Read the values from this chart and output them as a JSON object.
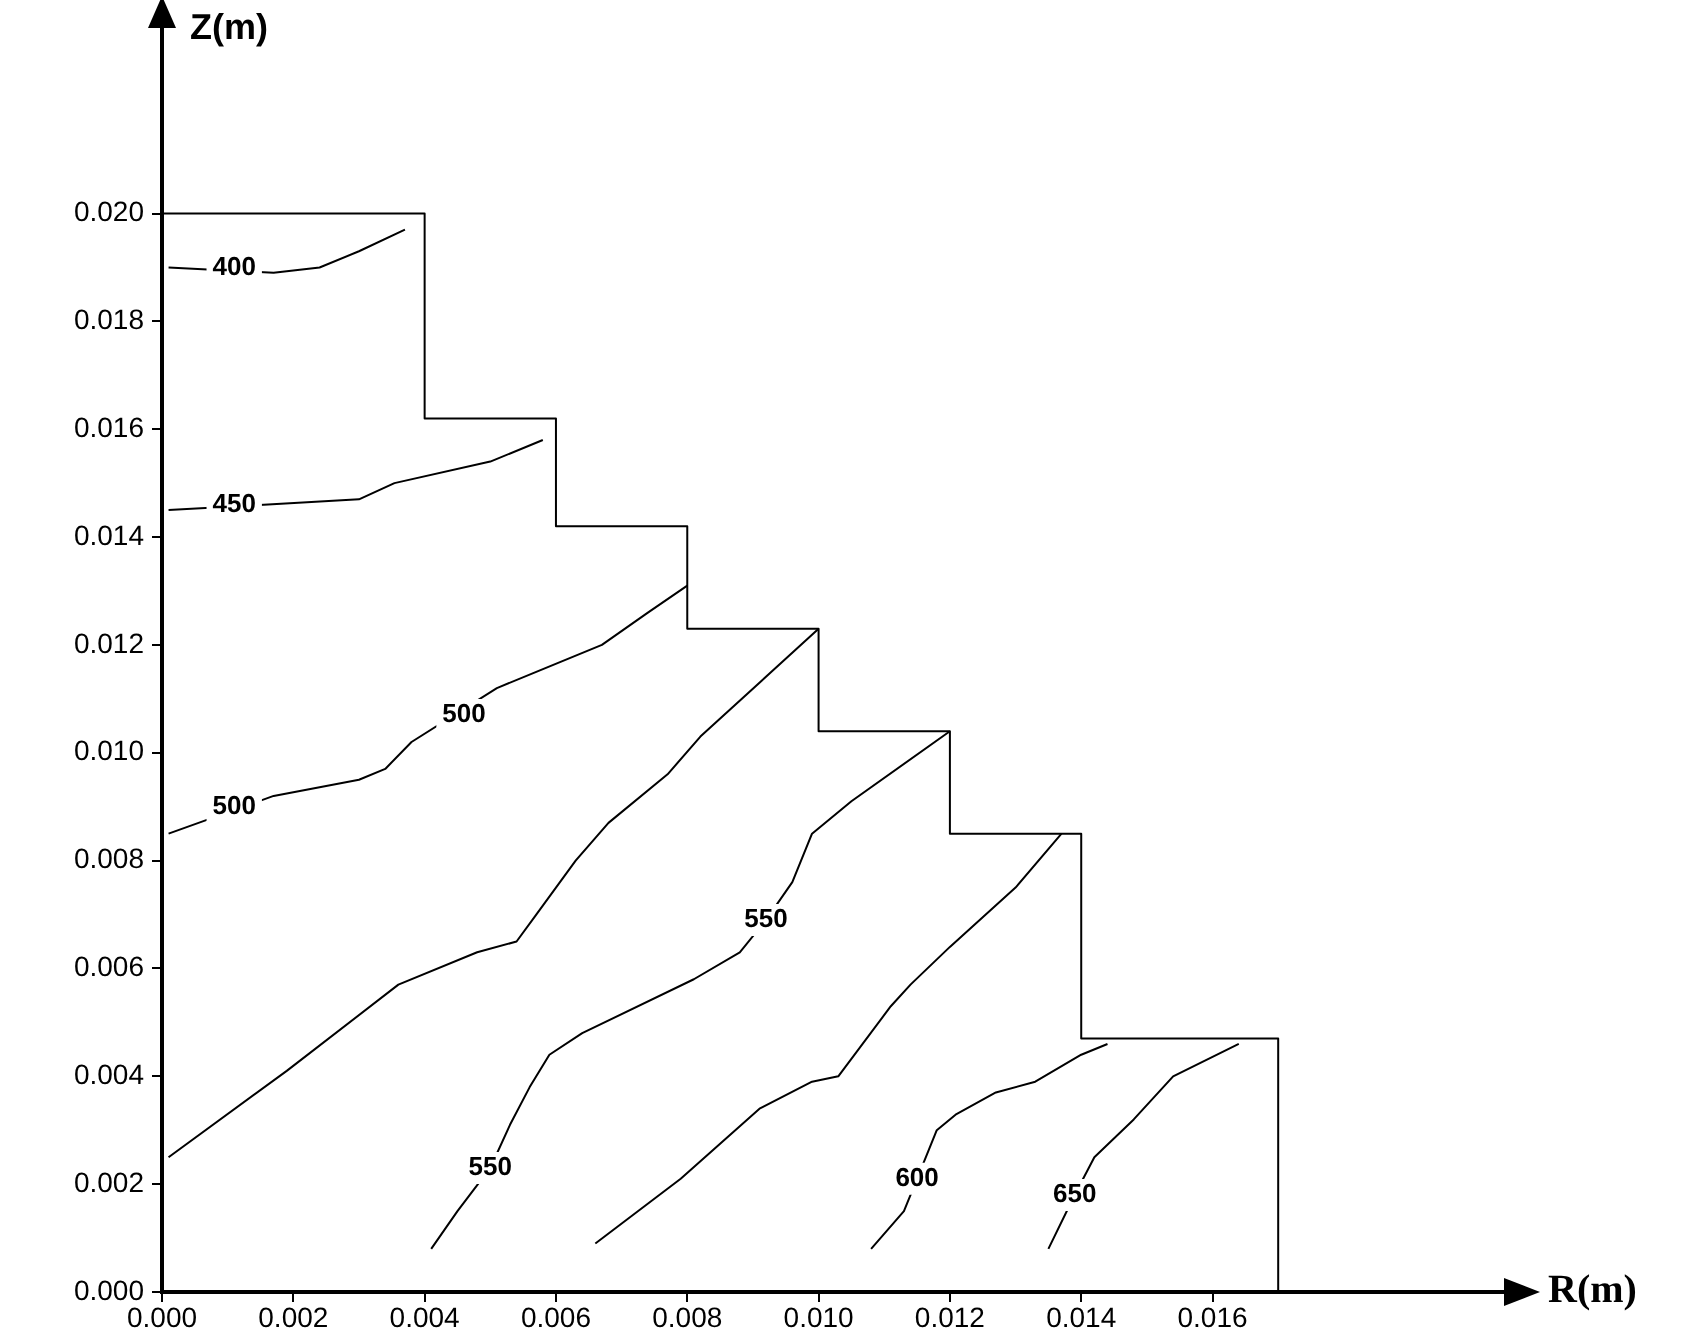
{
  "chart_data": {
    "type": "line",
    "xlabel": "R(m)",
    "ylabel": "Z(m)",
    "marker": "none",
    "line_style": "solid",
    "grid": false,
    "xlim": [
      0,
      0.0205
    ],
    "ylim": [
      0,
      0.0235
    ],
    "xticks": [
      {
        "value": 0,
        "label": "0.000"
      },
      {
        "value": 0.002,
        "label": "0.002"
      },
      {
        "value": 0.004,
        "label": "0.004"
      },
      {
        "value": 0.006,
        "label": "0.006"
      },
      {
        "value": 0.008,
        "label": "0.008"
      },
      {
        "value": 0.01,
        "label": "0.010"
      },
      {
        "value": 0.012,
        "label": "0.012"
      },
      {
        "value": 0.014,
        "label": "0.014"
      },
      {
        "value": 0.016,
        "label": "0.016"
      }
    ],
    "yticks": [
      {
        "value": 0,
        "label": "0.000"
      },
      {
        "value": 0.002,
        "label": "0.002"
      },
      {
        "value": 0.004,
        "label": "0.004"
      },
      {
        "value": 0.006,
        "label": "0.006"
      },
      {
        "value": 0.008,
        "label": "0.008"
      },
      {
        "value": 0.01,
        "label": "0.010"
      },
      {
        "value": 0.012,
        "label": "0.012"
      },
      {
        "value": 0.014,
        "label": "0.014"
      },
      {
        "value": 0.016,
        "label": "0.016"
      },
      {
        "value": 0.018,
        "label": "0.018"
      },
      {
        "value": 0.02,
        "label": "0.020"
      }
    ],
    "series": [
      {
        "color": "#000000",
        "x": [
          0,
          0.004,
          0.004,
          0.006,
          0.006,
          0.008,
          0.008,
          0.01,
          0.01,
          0.012,
          0.012,
          0.014,
          0.014,
          0.017,
          0.017
        ],
        "values": [
          0.02,
          0.02,
          0.0162,
          0.0162,
          0.0142,
          0.0142,
          0.0123,
          0.0123,
          0.0104,
          0.0104,
          0.0085,
          0.0085,
          0.0047,
          0.0047,
          0
        ]
      },
      {
        "color": "#000000",
        "x": [
          0.0001,
          0.0017,
          0.0024,
          0.003,
          0.0037
        ],
        "values": [
          0.019,
          0.0189,
          0.019,
          0.0193,
          0.0197
        ]
      },
      {
        "color": "#000000",
        "x": [
          0.0001,
          0.00155,
          0.003,
          0.00354,
          0.005,
          0.0058
        ],
        "values": [
          0.0145,
          0.0146,
          0.0147,
          0.015,
          0.0154,
          0.0158
        ]
      },
      {
        "color": "#000000",
        "x": [
          0.0001,
          0.0017,
          0.003,
          0.0034,
          0.0038,
          0.0051,
          0.0057,
          0.0067,
          0.0074,
          0.008
        ],
        "values": [
          0.0085,
          0.0092,
          0.0095,
          0.0097,
          0.0102,
          0.0112,
          0.0115,
          0.012,
          0.0126,
          0.0131
        ]
      },
      {
        "color": "#000000",
        "x": [
          0.0001,
          0.0019,
          0.0036,
          0.0048,
          0.0054,
          0.0057,
          0.0063,
          0.0068,
          0.0077,
          0.0082,
          0.01
        ],
        "values": [
          0.0025,
          0.0041,
          0.0057,
          0.0063,
          0.0065,
          0.007,
          0.008,
          0.0087,
          0.0096,
          0.0103,
          0.0123
        ]
      },
      {
        "color": "#000000",
        "x": [
          0.0041,
          0.0045,
          0.005,
          0.0053,
          0.0056,
          0.0059,
          0.0064,
          0.0081,
          0.0088,
          0.0092,
          0.0096,
          0.0099,
          0.0105,
          0.012
        ],
        "values": [
          0.0008,
          0.0015,
          0.0023,
          0.0031,
          0.0038,
          0.0044,
          0.0048,
          0.0058,
          0.0063,
          0.0069,
          0.0076,
          0.0085,
          0.0091,
          0.0104
        ]
      },
      {
        "color": "#000000",
        "x": [
          0.0066,
          0.0079,
          0.0091,
          0.0099,
          0.0103,
          0.0111,
          0.0114,
          0.012,
          0.013,
          0.0137
        ],
        "values": [
          0.0009,
          0.0021,
          0.0034,
          0.0039,
          0.004,
          0.0053,
          0.0057,
          0.0064,
          0.0075,
          0.0085
        ]
      },
      {
        "color": "#000000",
        "x": [
          0.0108,
          0.0113,
          0.0115,
          0.0118,
          0.0121,
          0.0127,
          0.0133,
          0.014,
          0.0144
        ],
        "values": [
          0.0008,
          0.0015,
          0.0021,
          0.003,
          0.0033,
          0.0037,
          0.0039,
          0.0044,
          0.0046
        ]
      },
      {
        "color": "#000000",
        "x": [
          0.0135,
          0.0139,
          0.0142,
          0.0148,
          0.0154,
          0.0164
        ],
        "values": [
          0.0008,
          0.0018,
          0.0025,
          0.0032,
          0.004,
          0.0046
        ]
      }
    ],
    "annotations": [
      {
        "text": "400",
        "x": 0.0011,
        "y": 0.019
      },
      {
        "text": "450",
        "x": 0.0011,
        "y": 0.0146
      },
      {
        "text": "500",
        "x": 0.0011,
        "y": 0.009
      },
      {
        "text": "500",
        "x": 0.0046,
        "y": 0.0107
      },
      {
        "text": "550",
        "x": 0.005,
        "y": 0.0023
      },
      {
        "text": "550",
        "x": 0.0092,
        "y": 0.0069
      },
      {
        "text": "600",
        "x": 0.0115,
        "y": 0.0021
      },
      {
        "text": "650",
        "x": 0.0139,
        "y": 0.0018
      }
    ]
  }
}
